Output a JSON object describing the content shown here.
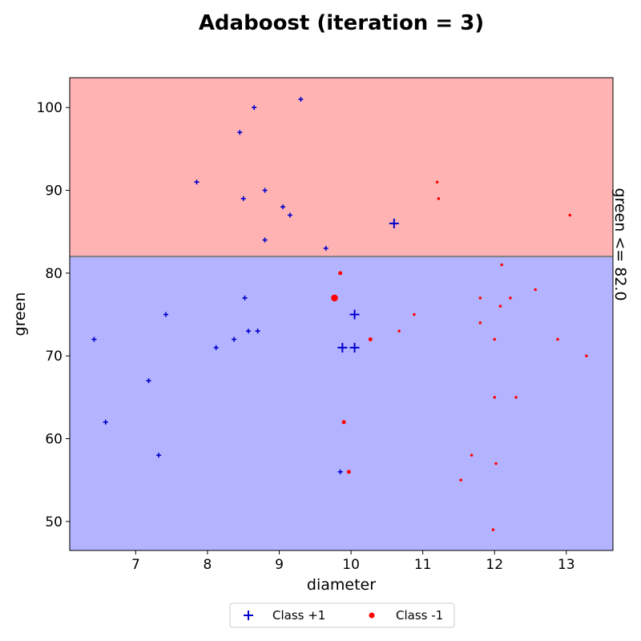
{
  "chart_data": {
    "type": "scatter",
    "title": "Adaboost (iteration = 3)",
    "xlabel": "diameter",
    "ylabel": "green",
    "xlim": [
      6.08,
      13.65
    ],
    "ylim": [
      46.5,
      103.6
    ],
    "xticks": [
      7,
      8,
      9,
      10,
      11,
      12,
      13
    ],
    "yticks": [
      50,
      60,
      70,
      80,
      90,
      100
    ],
    "grid": false,
    "decision_boundary": {
      "label": "green <= 82.0",
      "feature": "green",
      "threshold": 82.0,
      "above_color": "#ffb3b3",
      "below_color": "#b3b3ff",
      "line_color": "#808080"
    },
    "legend": {
      "placement": "bottom-center",
      "entries": [
        {
          "label": "Class +1",
          "marker": "plus",
          "color": "#0000cc"
        },
        {
          "label": "Class -1",
          "marker": "circle",
          "color": "#ff0000"
        }
      ]
    },
    "series": [
      {
        "name": "Class +1",
        "marker": "plus",
        "color": "#0000cc",
        "points": [
          {
            "x": 8.65,
            "y": 100,
            "weight": 1
          },
          {
            "x": 9.3,
            "y": 101,
            "weight": 1
          },
          {
            "x": 8.45,
            "y": 97,
            "weight": 1
          },
          {
            "x": 7.85,
            "y": 91,
            "weight": 1
          },
          {
            "x": 8.5,
            "y": 89,
            "weight": 1
          },
          {
            "x": 8.8,
            "y": 90,
            "weight": 1
          },
          {
            "x": 9.05,
            "y": 88,
            "weight": 1
          },
          {
            "x": 9.15,
            "y": 87,
            "weight": 1
          },
          {
            "x": 8.8,
            "y": 84,
            "weight": 1
          },
          {
            "x": 9.65,
            "y": 83,
            "weight": 1
          },
          {
            "x": 10.6,
            "y": 86,
            "weight": 4
          },
          {
            "x": 8.52,
            "y": 77,
            "weight": 1
          },
          {
            "x": 7.42,
            "y": 75,
            "weight": 1
          },
          {
            "x": 6.42,
            "y": 72,
            "weight": 1
          },
          {
            "x": 8.12,
            "y": 71,
            "weight": 1
          },
          {
            "x": 8.37,
            "y": 72,
            "weight": 1
          },
          {
            "x": 8.57,
            "y": 73,
            "weight": 1
          },
          {
            "x": 8.7,
            "y": 73,
            "weight": 1
          },
          {
            "x": 7.18,
            "y": 67,
            "weight": 1
          },
          {
            "x": 6.58,
            "y": 62,
            "weight": 1
          },
          {
            "x": 7.32,
            "y": 58,
            "weight": 1
          },
          {
            "x": 9.85,
            "y": 56,
            "weight": 1
          },
          {
            "x": 10.05,
            "y": 75,
            "weight": 4
          },
          {
            "x": 9.88,
            "y": 71,
            "weight": 4
          },
          {
            "x": 10.05,
            "y": 71,
            "weight": 4
          }
        ]
      },
      {
        "name": "Class -1",
        "marker": "circle",
        "color": "#ff0000",
        "points": [
          {
            "x": 11.2,
            "y": 91,
            "weight": 1
          },
          {
            "x": 11.22,
            "y": 89,
            "weight": 1
          },
          {
            "x": 13.05,
            "y": 87,
            "weight": 1
          },
          {
            "x": 9.85,
            "y": 80,
            "weight": 2
          },
          {
            "x": 9.77,
            "y": 77,
            "weight": 6
          },
          {
            "x": 12.1,
            "y": 81,
            "weight": 1
          },
          {
            "x": 12.57,
            "y": 78,
            "weight": 1
          },
          {
            "x": 11.8,
            "y": 77,
            "weight": 1
          },
          {
            "x": 12.22,
            "y": 77,
            "weight": 1
          },
          {
            "x": 12.08,
            "y": 76,
            "weight": 1
          },
          {
            "x": 10.88,
            "y": 75,
            "weight": 1
          },
          {
            "x": 11.8,
            "y": 74,
            "weight": 1
          },
          {
            "x": 10.67,
            "y": 73,
            "weight": 1
          },
          {
            "x": 10.27,
            "y": 72,
            "weight": 2
          },
          {
            "x": 12.0,
            "y": 72,
            "weight": 1
          },
          {
            "x": 12.88,
            "y": 72,
            "weight": 1
          },
          {
            "x": 13.28,
            "y": 70,
            "weight": 1
          },
          {
            "x": 12.0,
            "y": 65,
            "weight": 1
          },
          {
            "x": 12.3,
            "y": 65,
            "weight": 1
          },
          {
            "x": 9.9,
            "y": 62,
            "weight": 2
          },
          {
            "x": 11.68,
            "y": 58,
            "weight": 1
          },
          {
            "x": 12.02,
            "y": 57,
            "weight": 1
          },
          {
            "x": 9.97,
            "y": 56,
            "weight": 2
          },
          {
            "x": 11.53,
            "y": 55,
            "weight": 1
          },
          {
            "x": 11.98,
            "y": 49,
            "weight": 1
          }
        ]
      }
    ]
  }
}
